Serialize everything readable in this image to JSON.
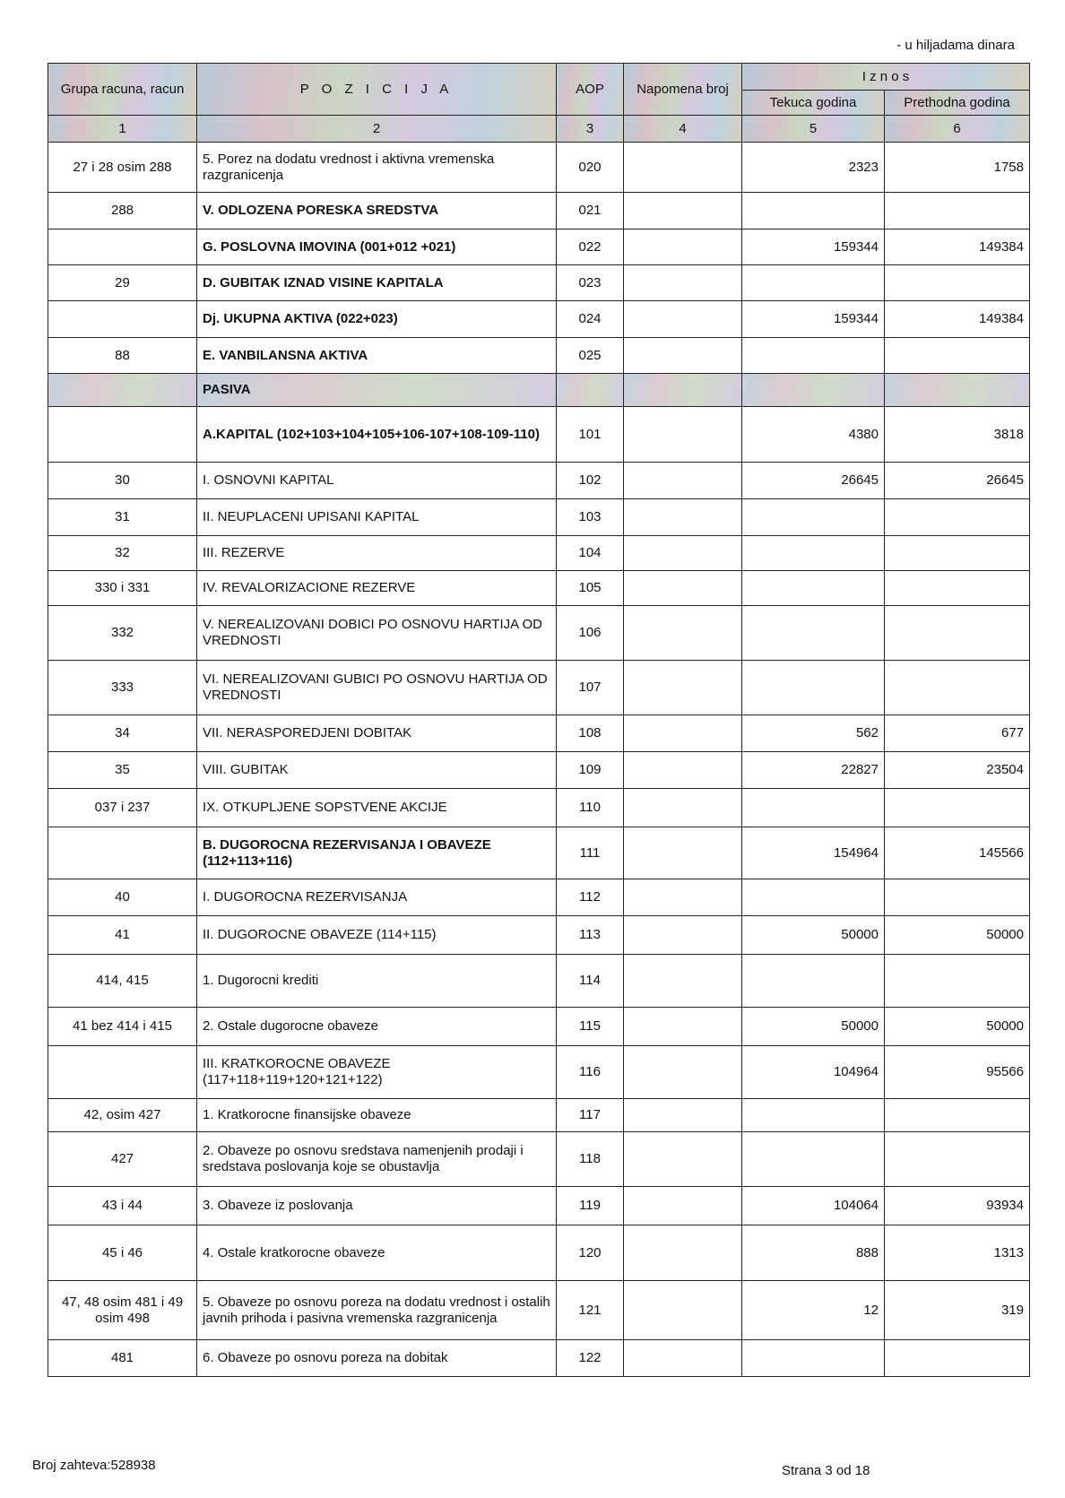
{
  "unit_note": "- u hiljadama dinara",
  "header": {
    "col1": "Grupa racuna, racun",
    "col2": "P O Z I C I J A",
    "col3": "AOP",
    "col4": "Napomena broj",
    "iznos": "I z n o s",
    "col5": "Tekuca godina",
    "col6": "Prethodna godina",
    "numbers": [
      "1",
      "2",
      "3",
      "4",
      "5",
      "6"
    ]
  },
  "rows": [
    {
      "grupa": "27 i 28 osim 288",
      "pozicija": "5. Porez na dodatu vrednost i aktivna vremenska razgranicenja",
      "aop": "020",
      "napomena": "",
      "tekuca": "2323",
      "prethodna": "1758",
      "bold": false
    },
    {
      "grupa": "288",
      "pozicija": "V. ODLOZENA PORESKA SREDSTVA",
      "aop": "021",
      "napomena": "",
      "tekuca": "",
      "prethodna": "",
      "bold": true
    },
    {
      "grupa": "",
      "pozicija": "G. POSLOVNA IMOVINA (001+012 +021)",
      "aop": "022",
      "napomena": "",
      "tekuca": "159344",
      "prethodna": "149384",
      "bold": true
    },
    {
      "grupa": "29",
      "pozicija": "D. GUBITAK IZNAD VISINE KAPITALA",
      "aop": "023",
      "napomena": "",
      "tekuca": "",
      "prethodna": "",
      "bold": true
    },
    {
      "grupa": "",
      "pozicija": "Dj. UKUPNA AKTIVA (022+023)",
      "aop": "024",
      "napomena": "",
      "tekuca": "159344",
      "prethodna": "149384",
      "bold": true
    },
    {
      "grupa": "88",
      "pozicija": "E. VANBILANSNA AKTIVA",
      "aop": "025",
      "napomena": "",
      "tekuca": "",
      "prethodna": "",
      "bold": true
    },
    {
      "grupa": "",
      "pozicija": "PASIVA",
      "aop": "",
      "napomena": "",
      "tekuca": "",
      "prethodna": "",
      "bold": true,
      "section": true
    },
    {
      "grupa": "",
      "pozicija": "A.KAPITAL (102+103+104+105+106-107+108-109-110)",
      "aop": "101",
      "napomena": "",
      "tekuca": "4380",
      "prethodna": "3818",
      "bold": true
    },
    {
      "grupa": "30",
      "pozicija": "I. OSNOVNI KAPITAL",
      "aop": "102",
      "napomena": "",
      "tekuca": "26645",
      "prethodna": "26645",
      "bold": false
    },
    {
      "grupa": "31",
      "pozicija": "II. NEUPLACENI UPISANI KAPITAL",
      "aop": "103",
      "napomena": "",
      "tekuca": "",
      "prethodna": "",
      "bold": false
    },
    {
      "grupa": "32",
      "pozicija": "III. REZERVE",
      "aop": "104",
      "napomena": "",
      "tekuca": "",
      "prethodna": "",
      "bold": false
    },
    {
      "grupa": "330 i 331",
      "pozicija": "IV. REVALORIZACIONE REZERVE",
      "aop": "105",
      "napomena": "",
      "tekuca": "",
      "prethodna": "",
      "bold": false
    },
    {
      "grupa": "332",
      "pozicija": "V. NEREALIZOVANI DOBICI PO OSNOVU HARTIJA OD VREDNOSTI",
      "aop": "106",
      "napomena": "",
      "tekuca": "",
      "prethodna": "",
      "bold": false
    },
    {
      "grupa": "333",
      "pozicija": "VI. NEREALIZOVANI GUBICI PO OSNOVU HARTIJA OD VREDNOSTI",
      "aop": "107",
      "napomena": "",
      "tekuca": "",
      "prethodna": "",
      "bold": false
    },
    {
      "grupa": "34",
      "pozicija": "VII. NERASPOREDJENI DOBITAK",
      "aop": "108",
      "napomena": "",
      "tekuca": "562",
      "prethodna": "677",
      "bold": false
    },
    {
      "grupa": "35",
      "pozicija": "VIII. GUBITAK",
      "aop": "109",
      "napomena": "",
      "tekuca": "22827",
      "prethodna": "23504",
      "bold": false
    },
    {
      "grupa": "037 i 237",
      "pozicija": "IX. OTKUPLJENE SOPSTVENE AKCIJE",
      "aop": "110",
      "napomena": "",
      "tekuca": "",
      "prethodna": "",
      "bold": false
    },
    {
      "grupa": "",
      "pozicija": "B. DUGOROCNA REZERVISANJA I OBAVEZE (112+113+116)",
      "aop": "111",
      "napomena": "",
      "tekuca": "154964",
      "prethodna": "145566",
      "bold": true
    },
    {
      "grupa": "40",
      "pozicija": "I. DUGOROCNA REZERVISANJA",
      "aop": "112",
      "napomena": "",
      "tekuca": "",
      "prethodna": "",
      "bold": false
    },
    {
      "grupa": "41",
      "pozicija": "II. DUGOROCNE OBAVEZE (114+115)",
      "aop": "113",
      "napomena": "",
      "tekuca": "50000",
      "prethodna": "50000",
      "bold": false
    },
    {
      "grupa": "414, 415",
      "pozicija": "1. Dugorocni krediti",
      "aop": "114",
      "napomena": "",
      "tekuca": "",
      "prethodna": "",
      "bold": false
    },
    {
      "grupa": "41 bez 414 i 415",
      "pozicija": "2. Ostale dugorocne obaveze",
      "aop": "115",
      "napomena": "",
      "tekuca": "50000",
      "prethodna": "50000",
      "bold": false
    },
    {
      "grupa": "",
      "pozicija": "III. KRATKOROCNE OBAVEZE (117+118+119+120+121+122)",
      "aop": "116",
      "napomena": "",
      "tekuca": "104964",
      "prethodna": "95566",
      "bold": false
    },
    {
      "grupa": "42, osim 427",
      "pozicija": "1. Kratkorocne finansijske obaveze",
      "aop": "117",
      "napomena": "",
      "tekuca": "",
      "prethodna": "",
      "bold": false
    },
    {
      "grupa": "427",
      "pozicija": "2. Obaveze po osnovu sredstava namenjenih prodaji i sredstava poslovanja koje se obustavlja",
      "aop": "118",
      "napomena": "",
      "tekuca": "",
      "prethodna": "",
      "bold": false
    },
    {
      "grupa": "43 i 44",
      "pozicija": "3. Obaveze iz poslovanja",
      "aop": "119",
      "napomena": "",
      "tekuca": "104064",
      "prethodna": "93934",
      "bold": false
    },
    {
      "grupa": "45 i 46",
      "pozicija": "4. Ostale kratkorocne obaveze",
      "aop": "120",
      "napomena": "",
      "tekuca": "888",
      "prethodna": "1313",
      "bold": false
    },
    {
      "grupa": "47, 48 osim 481 i 49 osim 498",
      "pozicija": "5. Obaveze po osnovu poreza na dodatu vrednost i ostalih javnih prihoda i pasivna vremenska razgranicenja",
      "aop": "121",
      "napomena": "",
      "tekuca": "12",
      "prethodna": "319",
      "bold": false
    },
    {
      "grupa": "481",
      "pozicija": "6. Obaveze po osnovu poreza na dobitak",
      "aop": "122",
      "napomena": "",
      "tekuca": "",
      "prethodna": "",
      "bold": false
    }
  ],
  "footer": {
    "request_no": "Broj zahteva:528938",
    "page": "Strana 3 od 18"
  }
}
